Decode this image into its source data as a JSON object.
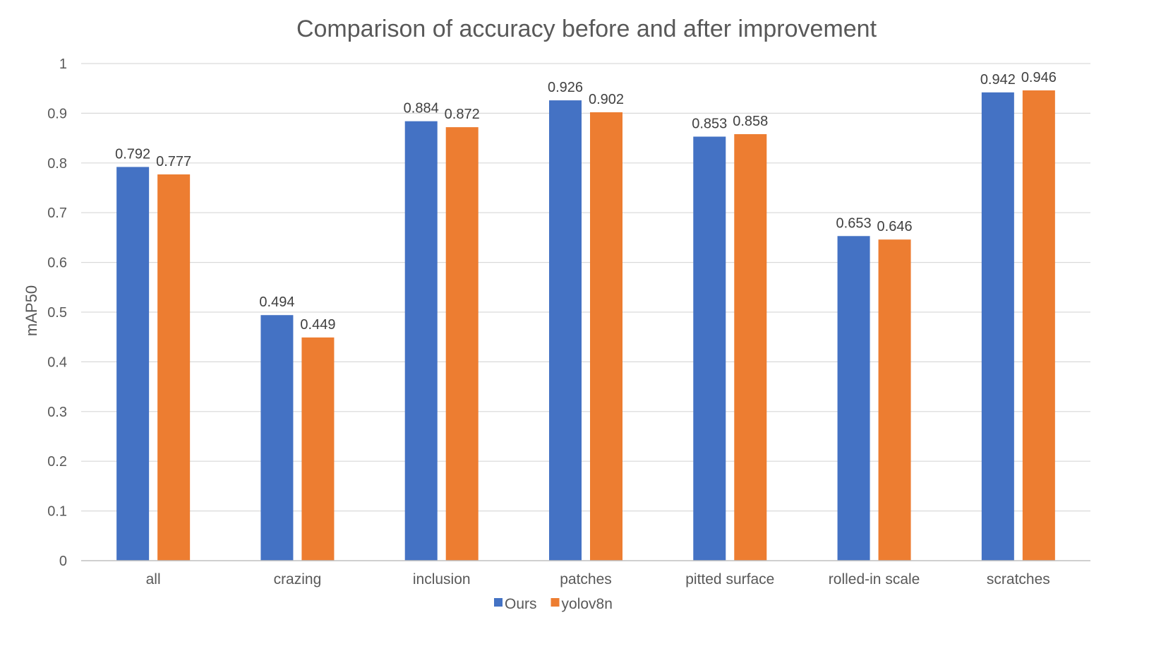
{
  "chart_data": {
    "type": "bar",
    "title": "Comparison of accuracy before and after improvement",
    "ylabel": "mAP50",
    "xlabel": "",
    "ylim": [
      0,
      1
    ],
    "yticks": [
      "0",
      "0.1",
      "0.2",
      "0.3",
      "0.4",
      "0.5",
      "0.6",
      "0.7",
      "0.8",
      "0.9",
      "1"
    ],
    "grid": true,
    "legend_position": "bottom",
    "categories": [
      "all",
      "crazing",
      "inclusion",
      "patches",
      "pitted surface",
      "rolled-in scale",
      "scratches"
    ],
    "series": [
      {
        "name": "Ours",
        "color": "#4472c4",
        "values": [
          0.792,
          0.494,
          0.884,
          0.926,
          0.853,
          0.653,
          0.942
        ],
        "labels": [
          "0.792",
          "0.494",
          "0.884",
          "0.926",
          "0.853",
          "0.653",
          "0.942"
        ]
      },
      {
        "name": "yolov8n",
        "color": "#ed7d31",
        "values": [
          0.777,
          0.449,
          0.872,
          0.902,
          0.858,
          0.646,
          0.946
        ],
        "labels": [
          "0.777",
          "0.449",
          "0.872",
          "0.902",
          "0.858",
          "0.646",
          "0.946"
        ]
      }
    ]
  }
}
